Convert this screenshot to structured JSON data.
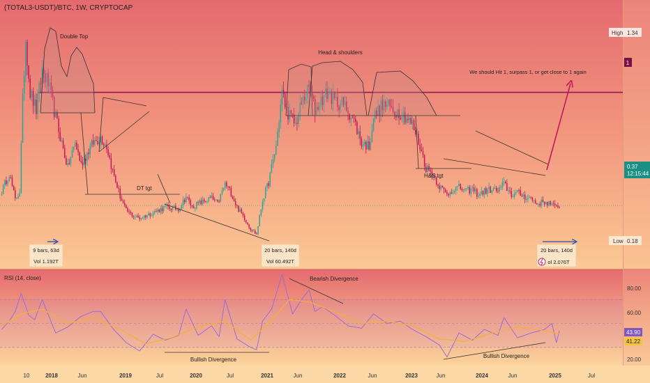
{
  "header": {
    "symbol_title": "(TOTAL3-USDT)/BTC, 1W, CRYPTOCAP"
  },
  "price_axis": {
    "high": {
      "label": "High",
      "value": "1.34"
    },
    "low": {
      "label": "Low",
      "value": "0.18"
    },
    "level_one": "1",
    "current_price": "0.37",
    "countdown": "12:15:44"
  },
  "annotations": {
    "double_top": "Double Top",
    "head_shoulders": "Head & shoulders",
    "target_note": "We should Hit 1, surpass 1, or get close to 1 again",
    "dt_target": "DT tgt",
    "hs_target": "H&S tgt"
  },
  "measure_boxes": [
    {
      "bars": "9 bars, 63d",
      "vol": "Vol 1.192T"
    },
    {
      "bars": "20 bars, 140d",
      "vol": "Vol 60.492T"
    },
    {
      "bars": "20 bars, 140d",
      "vol": "ol 2.076T"
    }
  ],
  "rsi": {
    "title": "RSI (14, close)",
    "ticks": [
      "80.00",
      "60.00",
      "20.00"
    ],
    "value": "43.90",
    "ma_value": "41.22",
    "bearish_divergence": "Bearish Divergence",
    "bullish_divergence_1": "Bullish Divergence",
    "bullish_divergence_2": "Bullish Divergence"
  },
  "time_axis": [
    "10",
    "2018",
    "Jun",
    "2019",
    "Jul",
    "2020",
    "Jul",
    "2021",
    "Jun",
    "2022",
    "Jun",
    "2023",
    "Jun",
    "2024",
    "Jun",
    "2025",
    "Jul"
  ],
  "colors": {
    "up": "#26a69a",
    "down": "#c2185b",
    "level_line": "#9c1a55",
    "rsi_line": "#9b6bd6",
    "rsi_ma": "#f2b134",
    "bg_top": "#e56a6f",
    "bg_bottom": "#fbd39c"
  },
  "chart_data": [
    {
      "type": "candlestick",
      "title": "(TOTAL3-USDT)/BTC, 1W, CRYPTOCAP",
      "x_range": [
        "2017-10",
        "2025-07"
      ],
      "ylim": [
        0.18,
        1.34
      ],
      "levels": [
        1.0
      ],
      "current": 0.37,
      "anchors": [
        {
          "x": "2017-10-02",
          "y": 0.45
        },
        {
          "x": "2017-11-06",
          "y": 0.55
        },
        {
          "x": "2017-12-04",
          "y": 0.4
        },
        {
          "x": "2017-12-25",
          "y": 0.45
        },
        {
          "x": "2018-01-08",
          "y": 0.95
        },
        {
          "x": "2018-01-22",
          "y": 1.3
        },
        {
          "x": "2018-02-12",
          "y": 1.0
        },
        {
          "x": "2018-03-12",
          "y": 0.9
        },
        {
          "x": "2018-04-09",
          "y": 1.12
        },
        {
          "x": "2018-05-07",
          "y": 1.05
        },
        {
          "x": "2018-06-11",
          "y": 0.86
        },
        {
          "x": "2018-07-09",
          "y": 0.72
        },
        {
          "x": "2018-08-06",
          "y": 0.58
        },
        {
          "x": "2018-09-10",
          "y": 0.72
        },
        {
          "x": "2018-10-08",
          "y": 0.6
        },
        {
          "x": "2018-11-05",
          "y": 0.66
        },
        {
          "x": "2018-12-03",
          "y": 0.72
        },
        {
          "x": "2019-01-07",
          "y": 0.75
        },
        {
          "x": "2019-02-04",
          "y": 0.7
        },
        {
          "x": "2019-03-04",
          "y": 0.56
        },
        {
          "x": "2019-04-08",
          "y": 0.42
        },
        {
          "x": "2019-05-06",
          "y": 0.34
        },
        {
          "x": "2019-06-10",
          "y": 0.31
        },
        {
          "x": "2019-07-08",
          "y": 0.3
        },
        {
          "x": "2019-09-09",
          "y": 0.33
        },
        {
          "x": "2019-11-04",
          "y": 0.36
        },
        {
          "x": "2020-01-06",
          "y": 0.35
        },
        {
          "x": "2020-02-10",
          "y": 0.42
        },
        {
          "x": "2020-03-09",
          "y": 0.36
        },
        {
          "x": "2020-04-06",
          "y": 0.38
        },
        {
          "x": "2020-06-08",
          "y": 0.41
        },
        {
          "x": "2020-07-06",
          "y": 0.38
        },
        {
          "x": "2020-08-10",
          "y": 0.49
        },
        {
          "x": "2020-09-07",
          "y": 0.44
        },
        {
          "x": "2020-10-05",
          "y": 0.36
        },
        {
          "x": "2020-11-09",
          "y": 0.3
        },
        {
          "x": "2020-12-07",
          "y": 0.24
        },
        {
          "x": "2021-01-04",
          "y": 0.21
        },
        {
          "x": "2021-02-01",
          "y": 0.4
        },
        {
          "x": "2021-03-01",
          "y": 0.5
        },
        {
          "x": "2021-04-05",
          "y": 0.7
        },
        {
          "x": "2021-05-03",
          "y": 1.0
        },
        {
          "x": "2021-05-24",
          "y": 0.9
        },
        {
          "x": "2021-07-05",
          "y": 0.82
        },
        {
          "x": "2021-08-02",
          "y": 0.94
        },
        {
          "x": "2021-09-06",
          "y": 1.02
        },
        {
          "x": "2021-10-04",
          "y": 0.9
        },
        {
          "x": "2021-11-08",
          "y": 0.97
        },
        {
          "x": "2021-12-06",
          "y": 1.0
        },
        {
          "x": "2022-01-03",
          "y": 0.95
        },
        {
          "x": "2022-02-07",
          "y": 0.94
        },
        {
          "x": "2022-03-07",
          "y": 0.9
        },
        {
          "x": "2022-04-04",
          "y": 0.84
        },
        {
          "x": "2022-05-09",
          "y": 0.72
        },
        {
          "x": "2022-06-13",
          "y": 0.7
        },
        {
          "x": "2022-07-04",
          "y": 0.86
        },
        {
          "x": "2022-08-08",
          "y": 0.92
        },
        {
          "x": "2022-09-05",
          "y": 0.93
        },
        {
          "x": "2022-10-03",
          "y": 0.9
        },
        {
          "x": "2022-11-07",
          "y": 0.89
        },
        {
          "x": "2022-12-05",
          "y": 0.86
        },
        {
          "x": "2023-01-02",
          "y": 0.82
        },
        {
          "x": "2023-02-06",
          "y": 0.7
        },
        {
          "x": "2023-03-06",
          "y": 0.58
        },
        {
          "x": "2023-04-03",
          "y": 0.55
        },
        {
          "x": "2023-05-08",
          "y": 0.48
        },
        {
          "x": "2023-06-12",
          "y": 0.43
        },
        {
          "x": "2023-07-10",
          "y": 0.46
        },
        {
          "x": "2023-08-07",
          "y": 0.47
        },
        {
          "x": "2023-09-11",
          "y": 0.45
        },
        {
          "x": "2023-10-09",
          "y": 0.46
        },
        {
          "x": "2023-11-06",
          "y": 0.43
        },
        {
          "x": "2023-12-04",
          "y": 0.45
        },
        {
          "x": "2024-01-08",
          "y": 0.46
        },
        {
          "x": "2024-02-05",
          "y": 0.45
        },
        {
          "x": "2024-03-04",
          "y": 0.49
        },
        {
          "x": "2024-04-08",
          "y": 0.43
        },
        {
          "x": "2024-05-06",
          "y": 0.44
        },
        {
          "x": "2024-06-10",
          "y": 0.42
        },
        {
          "x": "2024-07-08",
          "y": 0.41
        },
        {
          "x": "2024-08-05",
          "y": 0.38
        },
        {
          "x": "2024-09-09",
          "y": 0.39
        },
        {
          "x": "2024-10-07",
          "y": 0.38
        },
        {
          "x": "2024-10-28",
          "y": 0.36
        },
        {
          "x": "2024-11-18",
          "y": 0.37
        }
      ]
    },
    {
      "type": "line",
      "title": "RSI (14, close)",
      "x_range": [
        "2017-10",
        "2025-07"
      ],
      "ylim": [
        10,
        95
      ],
      "bands": [
        30,
        50,
        70
      ],
      "series": [
        {
          "name": "RSI",
          "values": [
            {
              "x": "2017-10-02",
              "y": 45
            },
            {
              "x": "2017-11-06",
              "y": 52
            },
            {
              "x": "2017-12-04",
              "y": 60
            },
            {
              "x": "2018-01-01",
              "y": 75
            },
            {
              "x": "2018-02-05",
              "y": 57
            },
            {
              "x": "2018-03-05",
              "y": 53
            },
            {
              "x": "2018-04-09",
              "y": 70
            },
            {
              "x": "2018-06-11",
              "y": 42
            },
            {
              "x": "2018-08-06",
              "y": 47
            },
            {
              "x": "2018-10-08",
              "y": 56
            },
            {
              "x": "2018-12-03",
              "y": 60
            },
            {
              "x": "2019-01-07",
              "y": 60
            },
            {
              "x": "2019-03-04",
              "y": 46
            },
            {
              "x": "2019-05-06",
              "y": 34
            },
            {
              "x": "2019-07-08",
              "y": 27
            },
            {
              "x": "2019-09-09",
              "y": 41
            },
            {
              "x": "2019-11-04",
              "y": 36
            },
            {
              "x": "2020-01-06",
              "y": 40
            },
            {
              "x": "2020-02-10",
              "y": 62
            },
            {
              "x": "2020-04-06",
              "y": 40
            },
            {
              "x": "2020-06-08",
              "y": 48
            },
            {
              "x": "2020-07-13",
              "y": 39
            },
            {
              "x": "2020-08-10",
              "y": 70
            },
            {
              "x": "2020-10-05",
              "y": 37
            },
            {
              "x": "2020-12-07",
              "y": 30
            },
            {
              "x": "2021-01-04",
              "y": 28
            },
            {
              "x": "2021-02-01",
              "y": 52
            },
            {
              "x": "2021-03-15",
              "y": 62
            },
            {
              "x": "2021-05-03",
              "y": 91
            },
            {
              "x": "2021-06-21",
              "y": 58
            },
            {
              "x": "2021-08-02",
              "y": 70
            },
            {
              "x": "2021-09-06",
              "y": 78
            },
            {
              "x": "2021-10-04",
              "y": 60
            },
            {
              "x": "2021-11-08",
              "y": 64
            },
            {
              "x": "2022-01-03",
              "y": 57
            },
            {
              "x": "2022-03-07",
              "y": 48
            },
            {
              "x": "2022-05-09",
              "y": 46
            },
            {
              "x": "2022-07-04",
              "y": 58
            },
            {
              "x": "2022-09-05",
              "y": 50
            },
            {
              "x": "2022-11-07",
              "y": 52
            },
            {
              "x": "2023-01-02",
              "y": 45
            },
            {
              "x": "2023-03-06",
              "y": 39
            },
            {
              "x": "2023-05-08",
              "y": 32
            },
            {
              "x": "2023-06-12",
              "y": 22
            },
            {
              "x": "2023-08-07",
              "y": 42
            },
            {
              "x": "2023-10-09",
              "y": 36
            },
            {
              "x": "2023-12-04",
              "y": 45
            },
            {
              "x": "2024-02-05",
              "y": 40
            },
            {
              "x": "2024-03-04",
              "y": 55
            },
            {
              "x": "2024-05-06",
              "y": 38
            },
            {
              "x": "2024-07-08",
              "y": 42
            },
            {
              "x": "2024-09-09",
              "y": 45
            },
            {
              "x": "2024-10-14",
              "y": 50
            },
            {
              "x": "2024-11-04",
              "y": 34
            },
            {
              "x": "2024-11-18",
              "y": 43.9
            }
          ]
        },
        {
          "name": "RSI MA",
          "values": [
            {
              "x": "2017-10-02",
              "y": 48
            },
            {
              "x": "2018-01-01",
              "y": 58
            },
            {
              "x": "2018-04-09",
              "y": 62
            },
            {
              "x": "2018-08-06",
              "y": 50
            },
            {
              "x": "2018-12-03",
              "y": 55
            },
            {
              "x": "2019-04-08",
              "y": 45
            },
            {
              "x": "2019-08-05",
              "y": 33
            },
            {
              "x": "2019-12-02",
              "y": 38
            },
            {
              "x": "2020-04-06",
              "y": 47
            },
            {
              "x": "2020-08-10",
              "y": 52
            },
            {
              "x": "2020-12-07",
              "y": 36
            },
            {
              "x": "2021-03-01",
              "y": 50
            },
            {
              "x": "2021-06-07",
              "y": 70
            },
            {
              "x": "2021-09-06",
              "y": 68
            },
            {
              "x": "2022-01-03",
              "y": 60
            },
            {
              "x": "2022-05-09",
              "y": 50
            },
            {
              "x": "2022-09-05",
              "y": 52
            },
            {
              "x": "2023-01-02",
              "y": 48
            },
            {
              "x": "2023-05-08",
              "y": 37
            },
            {
              "x": "2023-09-04",
              "y": 35
            },
            {
              "x": "2024-01-08",
              "y": 42
            },
            {
              "x": "2024-05-06",
              "y": 47
            },
            {
              "x": "2024-09-09",
              "y": 44
            },
            {
              "x": "2024-11-18",
              "y": 41.22
            }
          ]
        }
      ]
    }
  ]
}
